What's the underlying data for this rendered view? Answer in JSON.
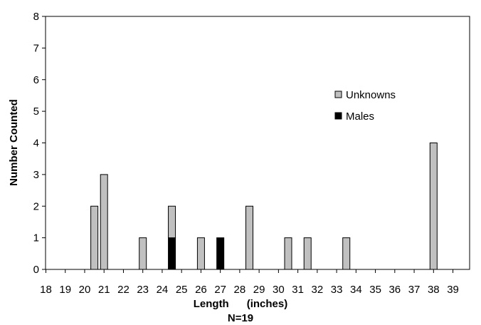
{
  "chart_data": {
    "type": "bar",
    "stacked": true,
    "x_ticks": [
      "18",
      "19",
      "20",
      "21",
      "22",
      "23",
      "24",
      "25",
      "26",
      "27",
      "28",
      "29",
      "30",
      "31",
      "32",
      "33",
      "34",
      "35",
      "36",
      "37",
      "38",
      "39"
    ],
    "x_range": [
      18,
      39
    ],
    "xlabel": "Length      (inches)",
    "subtitle": "N=19",
    "ylabel": "Number Counted",
    "ylim": [
      0,
      8
    ],
    "y_ticks": [
      "0",
      "1",
      "2",
      "3",
      "4",
      "5",
      "6",
      "7",
      "8"
    ],
    "grid": false,
    "legend_position": "right",
    "series": [
      {
        "name": "Unknowns",
        "color": "#c0c0c0",
        "points": [
          {
            "x": 20.5,
            "y": 2
          },
          {
            "x": 21,
            "y": 3
          },
          {
            "x": 23,
            "y": 1
          },
          {
            "x": 24.5,
            "y": 1
          },
          {
            "x": 26,
            "y": 1
          },
          {
            "x": 28.5,
            "y": 2
          },
          {
            "x": 30.5,
            "y": 1
          },
          {
            "x": 31.5,
            "y": 1
          },
          {
            "x": 33.5,
            "y": 1
          },
          {
            "x": 38,
            "y": 4
          }
        ]
      },
      {
        "name": "Males",
        "color": "#000000",
        "points": [
          {
            "x": 24.5,
            "y": 1
          },
          {
            "x": 27,
            "y": 1
          }
        ]
      }
    ]
  }
}
